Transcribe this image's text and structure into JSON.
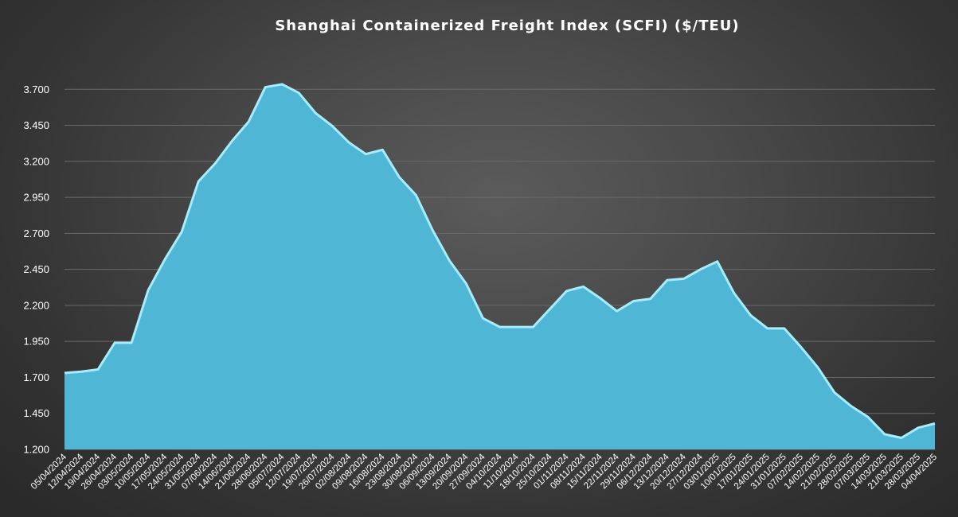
{
  "chart_data": {
    "type": "area",
    "title": "Shanghai Containerized Freight Index  (SCFI) ($/TEU)",
    "xlabel": "",
    "ylabel": "",
    "ylim": [
      1200,
      3950
    ],
    "yticks": [
      1200,
      1450,
      1700,
      1950,
      2200,
      2450,
      2700,
      2950,
      3200,
      3450,
      3700
    ],
    "ytick_labels": [
      "1.200",
      "1.450",
      "1.700",
      "1.950",
      "2.200",
      "2.450",
      "2.700",
      "2.950",
      "3.200",
      "3.450",
      "3.700"
    ],
    "grid": true,
    "legend": "none",
    "colors": {
      "fill": "#4fb6d6",
      "stroke": "#a6ecfb",
      "grid": "#6a6a6a",
      "text": "#ffffff"
    },
    "x": [
      "05/04/2024",
      "12/04/2024",
      "19/04/2024",
      "26/04/2024",
      "03/05/2024",
      "10/05/2024",
      "17/05/2024",
      "24/05/2024",
      "31/05/2024",
      "07/06/2024",
      "14/06/2024",
      "21/06/2024",
      "28/06/2024",
      "05/07/2024",
      "12/07/2024",
      "19/07/2024",
      "26/07/2024",
      "02/08/2024",
      "09/08/2024",
      "16/08/2024",
      "23/08/2024",
      "30/08/2024",
      "06/09/2024",
      "13/09/2024",
      "20/09/2024",
      "27/09/2024",
      "04/10/2024",
      "11/10/2024",
      "18/10/2024",
      "25/10/2024",
      "01/11/2024",
      "08/11/2024",
      "15/11/2024",
      "22/11/2024",
      "29/11/2024",
      "06/12/2024",
      "13/12/2024",
      "20/12/2024",
      "27/12/2024",
      "03/01/2025",
      "10/01/2025",
      "17/01/2025",
      "24/01/2025",
      "31/01/2025",
      "07/02/2025",
      "14/02/2025",
      "21/02/2025",
      "28/02/2025",
      "07/03/2025",
      "14/03/2025",
      "21/03/2025",
      "28/03/2025",
      "04/04/2025"
    ],
    "series": [
      {
        "values": [
          1731,
          1740,
          1755,
          1940,
          1940,
          2305,
          2520,
          2710,
          3060,
          3185,
          3340,
          3475,
          3715,
          3735,
          3675,
          3535,
          3445,
          3330,
          3250,
          3280,
          3090,
          2965,
          2720,
          2510,
          2350,
          2110,
          2050,
          2050,
          2050,
          2175,
          2300,
          2330,
          2250,
          2160,
          2230,
          2245,
          2375,
          2385,
          2450,
          2505,
          2285,
          2130,
          2040,
          2040,
          1910,
          1770,
          1595,
          1500,
          1425,
          1305,
          1280,
          1350,
          1380
        ]
      }
    ]
  }
}
